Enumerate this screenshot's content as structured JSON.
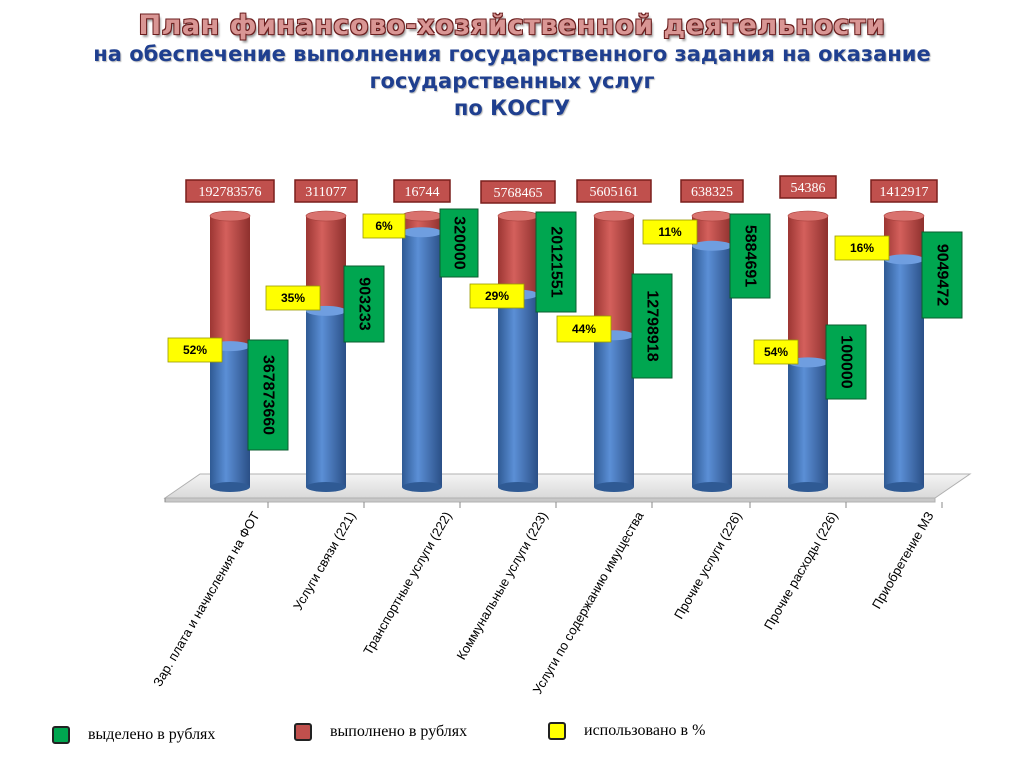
{
  "title": "План финансово-хозяйственной деятельности",
  "subtitle_lines": [
    "на обеспечение выполнения государственного задания на оказание",
    "государственных услуг",
    "по КОСГУ"
  ],
  "colors": {
    "allocated": "#00a650",
    "executed": "#c0504d",
    "used_pct": "#ffff00",
    "bar_base": "#4f81bd"
  },
  "legend": {
    "allocated": "выделено в рублях",
    "executed": "выполнено в рублях",
    "used_pct": "использовано в %"
  },
  "chart_data": {
    "type": "bar",
    "categories": [
      "Зар. плата и начисления на ФОТ",
      "Услуги связи (221)",
      "Транспортные услуги (222)",
      "Коммунальные услуги (223)",
      "Услуги по содержанию имущества",
      "Прочие услуги (226)",
      "Прочие расходы (226)",
      "Приобретение МЗ"
    ],
    "allocated": [
      "367873660",
      "903233",
      "320000",
      "20121551",
      "12798918",
      "5884691",
      "100000",
      "9049472"
    ],
    "executed": [
      "192783576",
      "311077",
      "16744",
      "5768465",
      "5605161",
      "638325",
      "54386",
      "1412917"
    ],
    "used_pct": [
      "52%",
      "35%",
      "6%",
      "29%",
      "44%",
      "11%",
      "54%",
      "16%"
    ],
    "blue_fraction": [
      0.52,
      0.65,
      0.94,
      0.71,
      0.56,
      0.89,
      0.46,
      0.84
    ]
  }
}
